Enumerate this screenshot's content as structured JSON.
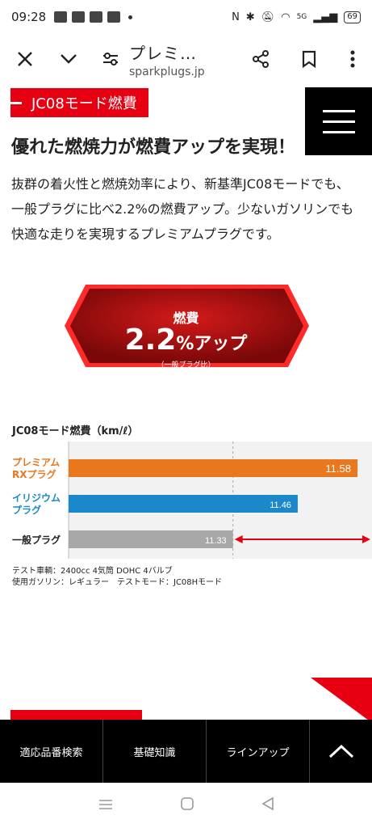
{
  "status_bar": {
    "time": "09:28",
    "battery": "69",
    "network": "5G"
  },
  "toolbar": {
    "close_icon": "close-icon",
    "chevron_icon": "chevron-down-icon",
    "page_title": "プレミ…",
    "domain": "sparkplugs.jp"
  },
  "page": {
    "section_label": "JC08モード燃費",
    "headline": "優れた燃焼力が燃費アップを実現！",
    "body": "抜群の着火性と燃焼効率により、新基準JC08モードでも、一般プラグに比べ2.2%の燃費アップ。少ないガソリンでも快適な走りを実現するプレミアムプラグです。",
    "badge": {
      "line1": "燃費",
      "value": "2.2",
      "unit": "%アップ",
      "note": "（一般プラグ比）"
    },
    "chart_title": "JC08モード燃費（km/ℓ）",
    "note_line1": "テスト車輌：2400cc 4気筒 DOHC 4バルブ",
    "note_line2": "使用ガソリン：レギュラー　テストモード：JC08Hモード"
  },
  "chart_data": {
    "type": "bar",
    "orientation": "horizontal",
    "title": "JC08モード燃費（km/ℓ）",
    "categories": [
      "プレミアム RXプラグ",
      "イリジウム プラグ",
      "一般プラグ"
    ],
    "values": [
      11.58,
      11.46,
      11.33
    ],
    "colors": [
      "#e8771e",
      "#1a88c9",
      "#a8a8a8"
    ],
    "label_colors": [
      "#e8771e",
      "#1a88c9",
      "#222222"
    ]
  },
  "bottom_nav": {
    "items": [
      "適応品番検索",
      "基礎知識",
      "ラインアップ"
    ],
    "top_icon": "chevron-up-icon"
  },
  "colors": {
    "accent_red": "#e60012",
    "dark_red": "#8a0a0a"
  }
}
